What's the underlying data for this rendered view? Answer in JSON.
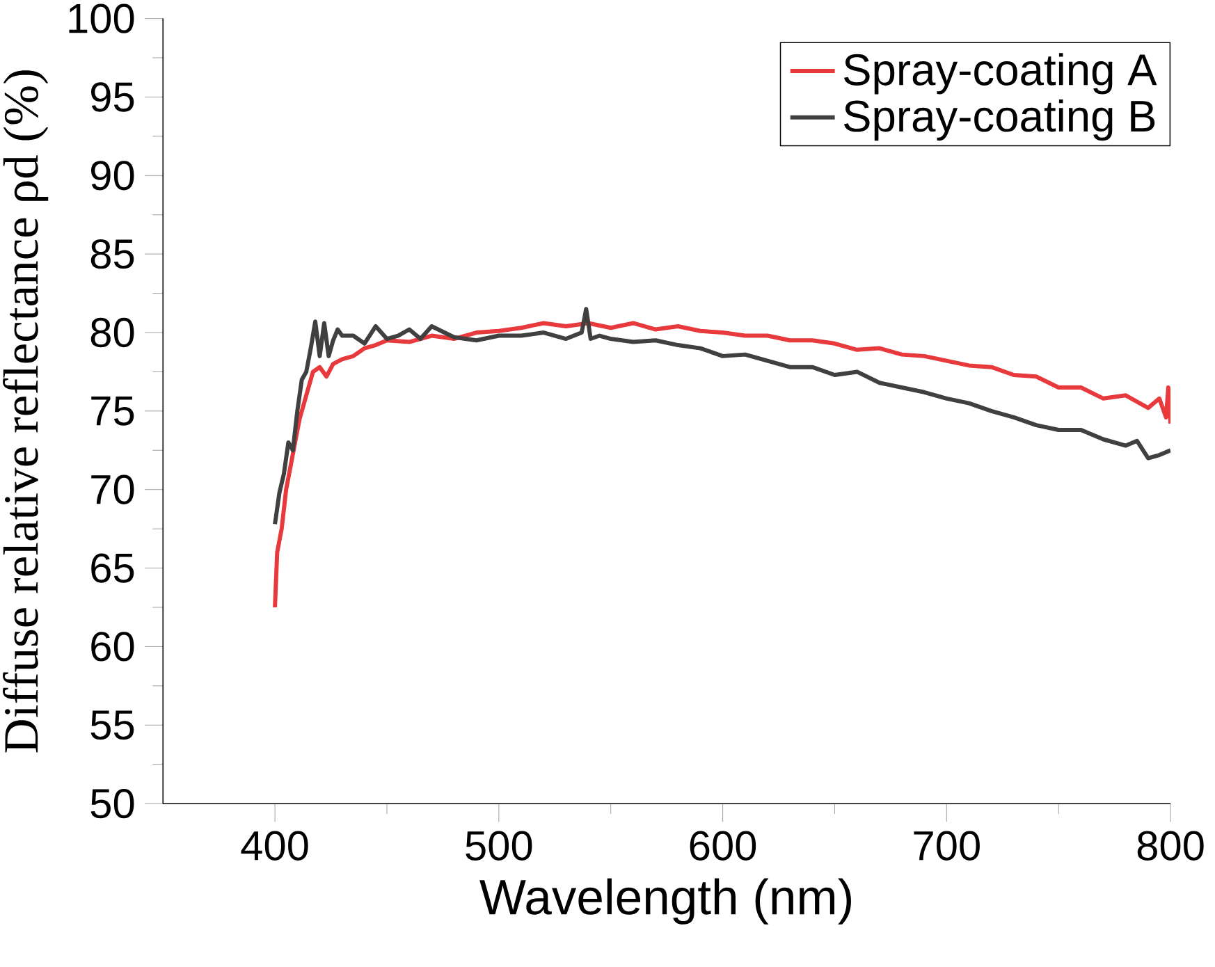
{
  "chart_data": {
    "type": "line",
    "xlabel": "Wavelength (nm)",
    "ylabel": "Diffuse relative reflectance ρd (%)",
    "xlim": [
      350,
      800
    ],
    "xticks": [
      400,
      500,
      600,
      700,
      800
    ],
    "ylim": [
      50,
      100
    ],
    "yticks": [
      50,
      55,
      60,
      65,
      70,
      75,
      80,
      85,
      90,
      95,
      100
    ],
    "legend": "top right",
    "grid": false,
    "marker": "none",
    "line_style": "solid",
    "series": [
      {
        "name": "Spray-coating A",
        "color": "#e8393c",
        "x": [
          400,
          401,
          403,
          405,
          407,
          409,
          411,
          413,
          415,
          417,
          420,
          423,
          426,
          430,
          435,
          440,
          445,
          450,
          460,
          470,
          480,
          490,
          500,
          510,
          520,
          530,
          540,
          550,
          560,
          570,
          580,
          590,
          600,
          610,
          620,
          630,
          640,
          650,
          660,
          670,
          680,
          690,
          700,
          710,
          720,
          730,
          740,
          750,
          760,
          770,
          780,
          790,
          795,
          798,
          799,
          800
        ],
        "values": [
          62.5,
          66,
          67.5,
          70,
          71.5,
          73,
          74.5,
          75.5,
          76.5,
          77.5,
          77.8,
          77.2,
          78,
          78.3,
          78.5,
          79,
          79.2,
          79.5,
          79.4,
          79.8,
          79.6,
          80,
          80.1,
          80.3,
          80.6,
          80.4,
          80.6,
          80.3,
          80.6,
          80.2,
          80.4,
          80.1,
          80,
          79.8,
          79.8,
          79.5,
          79.5,
          79.3,
          78.9,
          79,
          78.6,
          78.5,
          78.2,
          77.9,
          77.8,
          77.3,
          77.2,
          76.5,
          76.5,
          75.8,
          76,
          75.2,
          75.8,
          74.6,
          76.5,
          74.2
        ]
      },
      {
        "name": "Spray-coating B",
        "color": "#404040",
        "x": [
          400,
          402,
          404,
          406,
          408,
          410,
          412,
          414,
          416,
          418,
          420,
          422,
          424,
          426,
          428,
          430,
          435,
          440,
          445,
          450,
          455,
          460,
          465,
          470,
          480,
          490,
          500,
          510,
          520,
          530,
          537,
          539,
          541,
          545,
          550,
          560,
          570,
          580,
          590,
          600,
          610,
          620,
          630,
          640,
          650,
          660,
          670,
          680,
          690,
          700,
          710,
          720,
          730,
          740,
          750,
          760,
          770,
          780,
          785,
          790,
          795,
          800
        ],
        "values": [
          67.8,
          69.8,
          71,
          73,
          72.5,
          75,
          77,
          77.5,
          79,
          80.7,
          78.5,
          80.6,
          78.5,
          79.5,
          80.2,
          79.8,
          79.8,
          79.3,
          80.4,
          79.6,
          79.8,
          80.2,
          79.6,
          80.4,
          79.7,
          79.5,
          79.8,
          79.8,
          80,
          79.6,
          80,
          81.5,
          79.6,
          79.8,
          79.6,
          79.4,
          79.5,
          79.2,
          79,
          78.5,
          78.6,
          78.2,
          77.8,
          77.8,
          77.3,
          77.5,
          76.8,
          76.5,
          76.2,
          75.8,
          75.5,
          75,
          74.6,
          74.1,
          73.8,
          73.8,
          73.2,
          72.8,
          73.1,
          72,
          72.2,
          72.5
        ]
      }
    ]
  }
}
